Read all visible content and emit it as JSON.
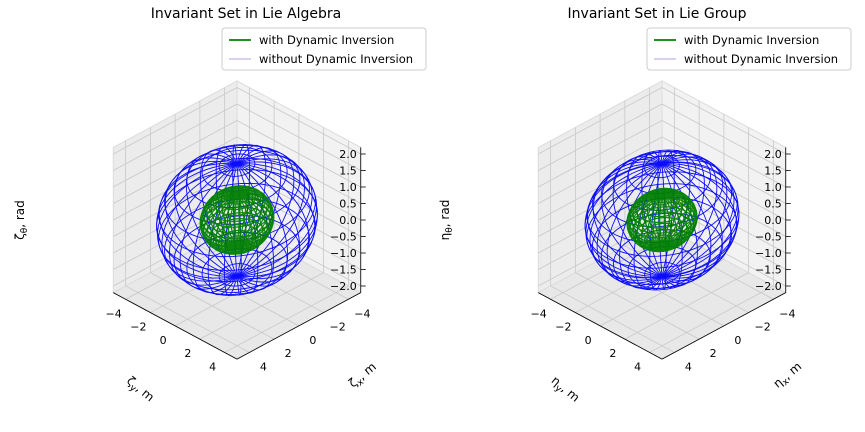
{
  "chart_data": [
    {
      "type": "3d-wireframe",
      "title": "Invariant Set in Lie Algebra",
      "xlabel": "ζ_x, m",
      "ylabel": "ζ_y, m",
      "zlabel": "ζ_θ, rad",
      "x_axis": {
        "symbol": "ζ",
        "sub": "x",
        "unit": ", m"
      },
      "y_axis": {
        "symbol": "ζ",
        "sub": "y",
        "unit": ", m"
      },
      "z_axis": {
        "symbol": "ζ",
        "sub": "θ",
        "unit": ", rad"
      },
      "xlim": [
        -5,
        5
      ],
      "ylim": [
        -5,
        5
      ],
      "zlim": [
        -2.2,
        2.2
      ],
      "xticks": [
        "−4",
        "−2",
        "0",
        "2",
        "4"
      ],
      "yticks": [
        "−4",
        "−2",
        "0",
        "2",
        "4"
      ],
      "zticks": [
        "2.0",
        "1.5",
        "1.0",
        "0.5",
        "0.0",
        "−0.5",
        "−1.0",
        "−1.5",
        "−2.0"
      ],
      "grid": true,
      "legend_position": "top-right",
      "series": [
        {
          "name": "with Dynamic Inversion",
          "color": "#008000",
          "shape": "ellipsoid",
          "semi_axes": [
            2.1,
            2.1,
            0.9
          ]
        },
        {
          "name": "without Dynamic Inversion",
          "color": "#0000ff",
          "shape": "ellipsoid",
          "semi_axes": [
            4.6,
            4.6,
            2.0
          ]
        }
      ]
    },
    {
      "type": "3d-wireframe",
      "title": "Invariant Set in Lie Group",
      "xlabel": "η_x, m",
      "ylabel": "η_y, m",
      "zlabel": "η_θ, rad",
      "x_axis": {
        "symbol": "η",
        "sub": "x",
        "unit": ", m"
      },
      "y_axis": {
        "symbol": "η",
        "sub": "y",
        "unit": ", m"
      },
      "z_axis": {
        "symbol": "η",
        "sub": "θ",
        "unit": ", rad"
      },
      "xlim": [
        -5,
        5
      ],
      "ylim": [
        -5,
        5
      ],
      "zlim": [
        -2.2,
        2.2
      ],
      "xticks": [
        "−4",
        "−2",
        "0",
        "2",
        "4"
      ],
      "yticks": [
        "−4",
        "−2",
        "0",
        "2",
        "4"
      ],
      "zticks": [
        "2.0",
        "1.5",
        "1.0",
        "0.5",
        "0.0",
        "−0.5",
        "−1.0",
        "−1.5",
        "−2.0"
      ],
      "grid": true,
      "legend_position": "top-right",
      "series": [
        {
          "name": "with Dynamic Inversion",
          "color": "#008000",
          "shape": "egg",
          "semi_axes": [
            2.0,
            2.0,
            0.9
          ]
        },
        {
          "name": "without Dynamic Inversion",
          "color": "#0000ff",
          "shape": "egg",
          "semi_axes": [
            4.4,
            4.4,
            2.0
          ]
        }
      ]
    }
  ]
}
